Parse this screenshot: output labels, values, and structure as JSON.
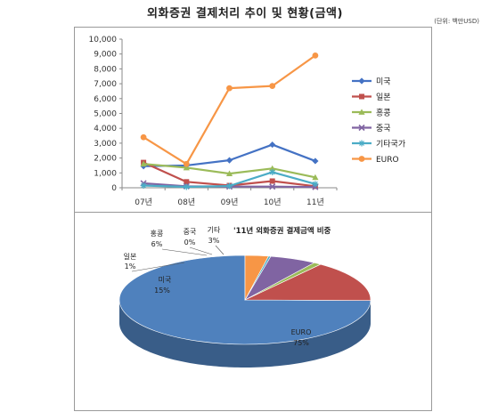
{
  "header": {
    "title": "외화증권 결제처리 추이 및 현황(금액)",
    "unit": "(단위: 백만USD)"
  },
  "colors": {
    "미국": "#4472c4",
    "일본": "#c0504d",
    "홍콩": "#9bbb59",
    "중국": "#8064a2",
    "기타국가": "#4bacc6",
    "EURO": "#f79646"
  },
  "chart_data": [
    {
      "type": "line",
      "categories": [
        "07년",
        "08년",
        "09년",
        "10년",
        "11년"
      ],
      "ylim": [
        0,
        10000
      ],
      "yticks": [
        "0",
        "1,000",
        "2,000",
        "3,000",
        "4,000",
        "5,000",
        "6,000",
        "7,000",
        "8,000",
        "9,000",
        "10,000"
      ],
      "grid": false,
      "legend": "right",
      "series": [
        {
          "name": "미국",
          "values": [
            1450,
            1500,
            1850,
            2900,
            1800
          ],
          "marker": "diamond"
        },
        {
          "name": "일본",
          "values": [
            1700,
            400,
            150,
            450,
            100
          ],
          "marker": "square"
        },
        {
          "name": "홍콩",
          "values": [
            1600,
            1350,
            950,
            1300,
            700
          ],
          "marker": "triangle"
        },
        {
          "name": "중국",
          "values": [
            300,
            100,
            80,
            80,
            50
          ],
          "marker": "x"
        },
        {
          "name": "기타국가",
          "values": [
            150,
            60,
            120,
            1050,
            250
          ],
          "marker": "star"
        },
        {
          "name": "EURO",
          "values": [
            3400,
            1600,
            6700,
            6850,
            8900
          ],
          "marker": "circle"
        }
      ]
    },
    {
      "type": "pie",
      "title": "'11년 외화증권 결제금액 비중",
      "slices": [
        {
          "label": "EURO",
          "pct_label": "75%",
          "value": 75,
          "color": "#4f81bd"
        },
        {
          "label": "미국",
          "pct_label": "15%",
          "value": 15,
          "color": "#c0504d"
        },
        {
          "label": "일본",
          "pct_label": "1%",
          "value": 1,
          "color": "#9bbb59"
        },
        {
          "label": "홍콩",
          "pct_label": "6%",
          "value": 6,
          "color": "#8064a2"
        },
        {
          "label": "중국",
          "pct_label": "0%",
          "value": 0.3,
          "color": "#4bacc6"
        },
        {
          "label": "기타",
          "pct_label": "3%",
          "value": 3,
          "color": "#f79646"
        }
      ]
    }
  ]
}
